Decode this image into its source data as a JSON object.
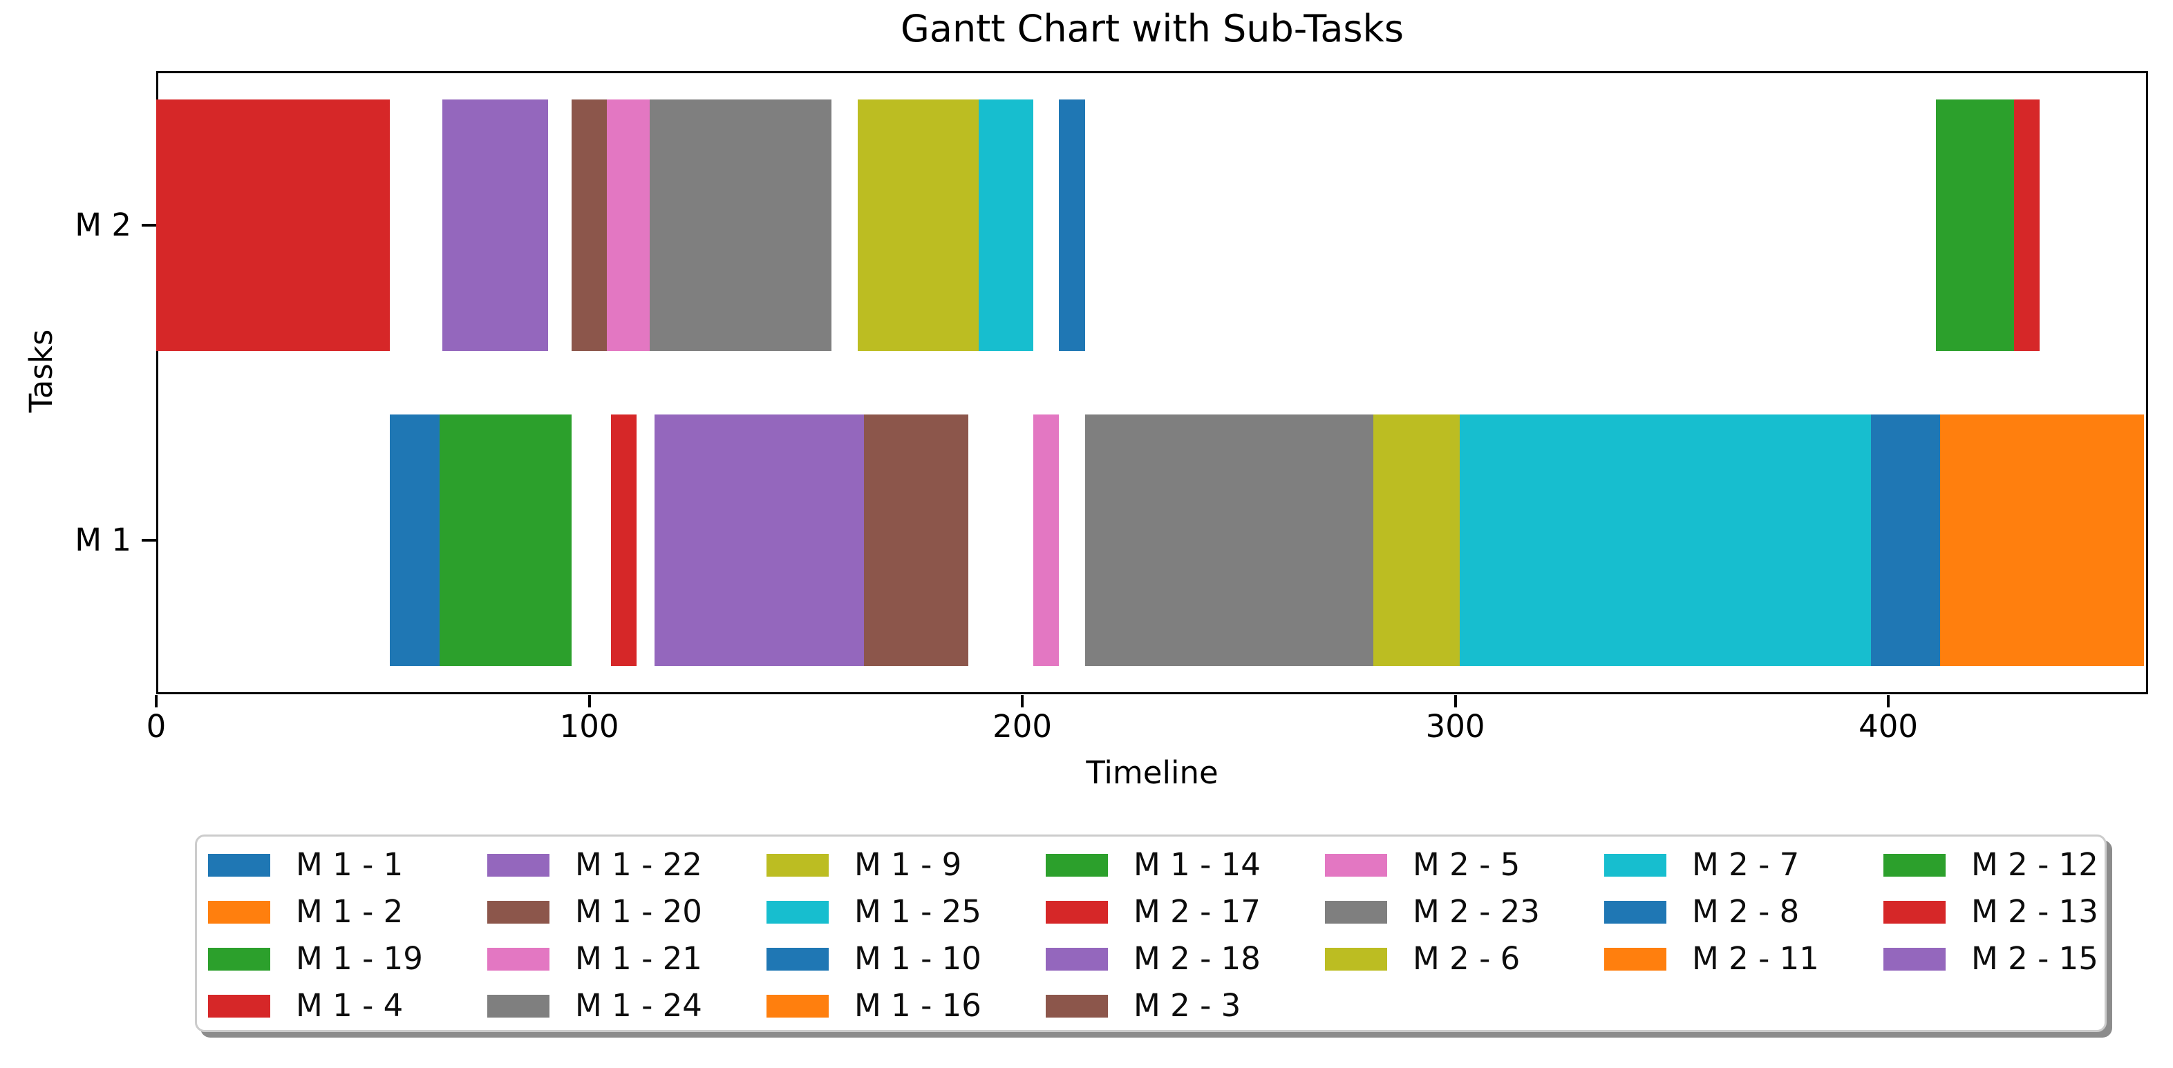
{
  "title": "Gantt Chart with Sub-Tasks",
  "axes": {
    "x_label": "Timeline",
    "y_label": "Tasks",
    "x_ticks": [
      0,
      100,
      200,
      300,
      400
    ],
    "y_categories": [
      "M 1",
      "M 2"
    ]
  },
  "palette": {
    "blue": "#1f77b4",
    "orange": "#ff7f0e",
    "green": "#2ca02c",
    "red": "#d62728",
    "purple": "#9467bd",
    "brown": "#8c564b",
    "pink": "#e377c2",
    "gray": "#7f7f7f",
    "olive": "#bcbd22",
    "cyan": "#17becf"
  },
  "chart_data": {
    "type": "bar",
    "subtype": "gantt-horizontal",
    "title": "Gantt Chart with Sub-Tasks",
    "xlabel": "Timeline",
    "ylabel": "Tasks",
    "xlim": [
      0,
      460
    ],
    "rows_top_to_bottom": [
      "M 2",
      "M 1"
    ],
    "grid": false,
    "legend_position": "below-chart",
    "legend_columns": 7,
    "legend_column_lengths": [
      4,
      4,
      4,
      4,
      3,
      3,
      3
    ],
    "legend_fill_order": "column-major",
    "tasks": [
      {
        "label": "M 1 - 1",
        "row": "M 1",
        "color": "#1f77b4",
        "start": 54,
        "end": 65.5
      },
      {
        "label": "M 1 - 2",
        "row": "M 1",
        "color": "#ff7f0e",
        "start": 65.5,
        "end": 65.5
      },
      {
        "label": "M 1 - 19",
        "row": "M 1",
        "color": "#2ca02c",
        "start": 65.5,
        "end": 96
      },
      {
        "label": "M 1 - 4",
        "row": "M 1",
        "color": "#d62728",
        "start": 105,
        "end": 111
      },
      {
        "label": "M 1 - 22",
        "row": "M 1",
        "color": "#9467bd",
        "start": 115,
        "end": 163.5
      },
      {
        "label": "M 1 - 20",
        "row": "M 1",
        "color": "#8c564b",
        "start": 163.5,
        "end": 187.5
      },
      {
        "label": "M 1 - 21",
        "row": "M 1",
        "color": "#e377c2",
        "start": 202.5,
        "end": 208.5
      },
      {
        "label": "M 1 - 24",
        "row": "M 1",
        "color": "#7f7f7f",
        "start": 214.5,
        "end": 281
      },
      {
        "label": "M 1 - 9",
        "row": "M 1",
        "color": "#bcbd22",
        "start": 281,
        "end": 301
      },
      {
        "label": "M 1 - 25",
        "row": "M 1",
        "color": "#17becf",
        "start": 301,
        "end": 396
      },
      {
        "label": "M 1 - 10",
        "row": "M 1",
        "color": "#1f77b4",
        "start": 396,
        "end": 412
      },
      {
        "label": "M 1 - 16",
        "row": "M 1",
        "color": "#ff7f0e",
        "start": 412,
        "end": 459
      },
      {
        "label": "M 1 - 14",
        "row": "M 1",
        "color": "#2ca02c",
        "start": 459,
        "end": 459
      },
      {
        "label": "M 2 - 17",
        "row": "M 2",
        "color": "#d62728",
        "start": 0,
        "end": 54
      },
      {
        "label": "M 2 - 18",
        "row": "M 2",
        "color": "#9467bd",
        "start": 66,
        "end": 90.5
      },
      {
        "label": "M 2 - 3",
        "row": "M 2",
        "color": "#8c564b",
        "start": 96,
        "end": 104
      },
      {
        "label": "M 2 - 5",
        "row": "M 2",
        "color": "#e377c2",
        "start": 104,
        "end": 114
      },
      {
        "label": "M 2 - 23",
        "row": "M 2",
        "color": "#7f7f7f",
        "start": 114,
        "end": 156
      },
      {
        "label": "M 2 - 6",
        "row": "M 2",
        "color": "#bcbd22",
        "start": 162,
        "end": 190
      },
      {
        "label": "M 2 - 7",
        "row": "M 2",
        "color": "#17becf",
        "start": 190,
        "end": 202.5
      },
      {
        "label": "M 2 - 8",
        "row": "M 2",
        "color": "#1f77b4",
        "start": 208.5,
        "end": 214.5
      },
      {
        "label": "M 2 - 11",
        "row": "M 2",
        "color": "#ff7f0e",
        "start": 214.5,
        "end": 214.5
      },
      {
        "label": "M 2 - 12",
        "row": "M 2",
        "color": "#2ca02c",
        "start": 411,
        "end": 429
      },
      {
        "label": "M 2 - 13",
        "row": "M 2",
        "color": "#d62728",
        "start": 429,
        "end": 435
      },
      {
        "label": "M 2 - 15",
        "row": "M 2",
        "color": "#9467bd",
        "start": 435,
        "end": 435
      }
    ]
  }
}
